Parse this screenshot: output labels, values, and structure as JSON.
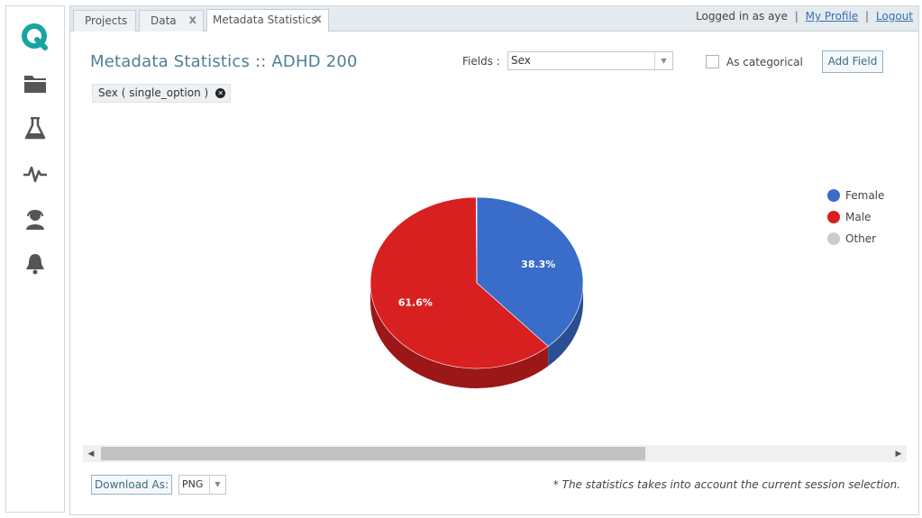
{
  "header": {
    "tabs": [
      {
        "label": "Projects",
        "closable": false
      },
      {
        "label": "Data",
        "closable": true
      },
      {
        "label": "Metadata Statistics",
        "closable": true,
        "active": true
      }
    ],
    "close_glyph": "x",
    "login_prefix": "Logged in as",
    "username": "aye",
    "separator": "|",
    "my_profile": "My Profile",
    "logout": "Logout"
  },
  "sidebar": {
    "icons": [
      "logo-q-icon",
      "folder-icon",
      "flask-icon",
      "activity-pulse-icon",
      "support-agent-icon",
      "bell-icon"
    ],
    "accent": "#1aa3a3"
  },
  "main": {
    "title": "Metadata Statistics :: ADHD 200",
    "fields_label": "Fields :",
    "fields_value": "Sex",
    "as_categorical_label": "As categorical",
    "as_categorical_checked": false,
    "add_field_label": "Add Field",
    "chip_label": "Sex ( single_option )"
  },
  "chart_data": {
    "type": "pie",
    "style": "3d",
    "categories": [
      "Female",
      "Male",
      "Other"
    ],
    "values": [
      38.3,
      61.6,
      0.1
    ],
    "labels": [
      "38.3%",
      "61.6%",
      ""
    ],
    "colors": [
      "#3a6dc9",
      "#d92020",
      "#cccccc"
    ],
    "legend_position": "right"
  },
  "footer": {
    "download_label": "Download As:",
    "format_value": "PNG",
    "footnote": "* The statistics takes into account the current session selection."
  }
}
